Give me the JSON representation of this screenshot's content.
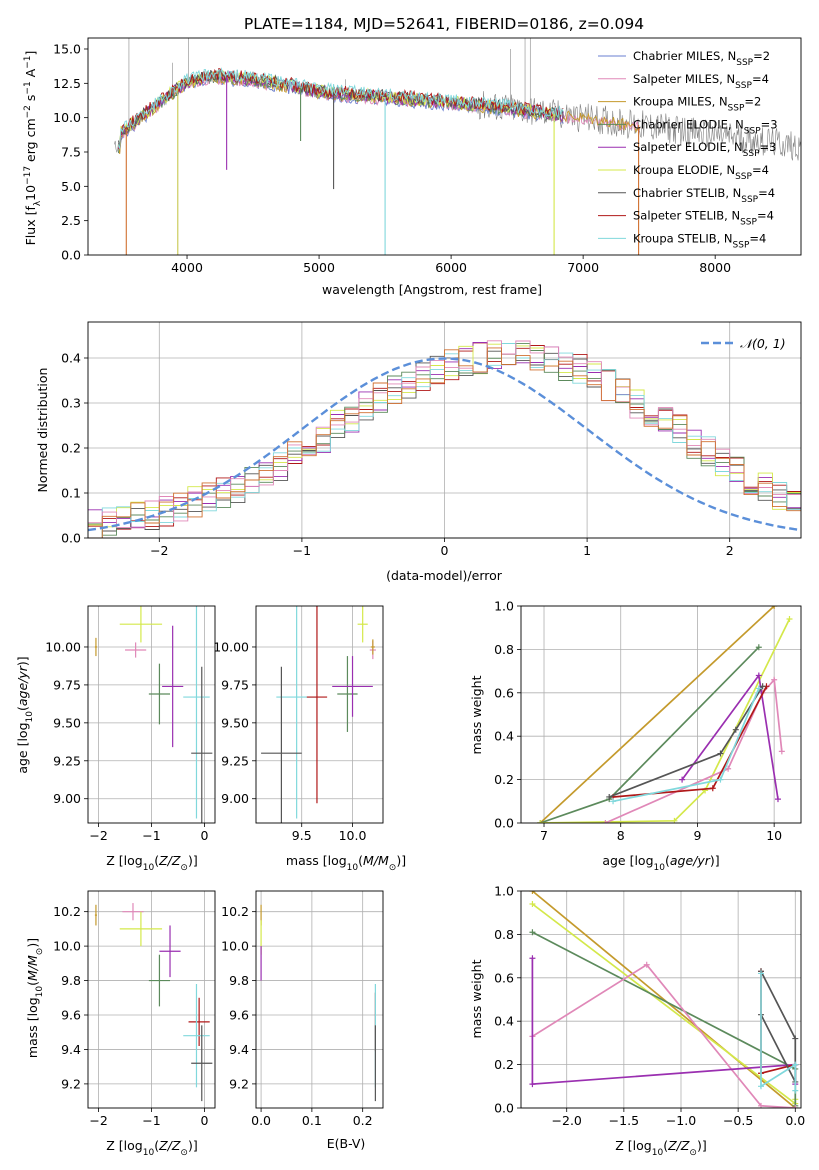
{
  "figure_title": "PLATE=1184, MJD=52641, FIBERID=0186, z=0.094",
  "colors": {
    "Chabrier MILES": "#6a7fd0",
    "Salpeter MILES": "#e088b8",
    "Kroupa MILES": "#c49a2c",
    "Chabrier ELODIE": "#5c8a5c",
    "Salpeter ELODIE": "#9a2fb0",
    "Kroupa ELODIE": "#d4e84a",
    "Chabrier STELIB": "#555555",
    "Salpeter STELIB": "#b01818",
    "Kroupa STELIB": "#80d8dc",
    "normal": "#5b8fd9",
    "mono_edge": "#d07030",
    "spectrum_gray": "#808080"
  },
  "chart_data": [
    {
      "id": "spectrum",
      "type": "line",
      "title": "PLATE=1184, MJD=52641, FIBERID=0186, z=0.094",
      "xlabel": "wavelength [Angstrom, rest frame]",
      "ylabel": "Flux [f_λ 10^-17 erg cm^-2 s^-1 A^-1]",
      "xlim": [
        3250,
        8650
      ],
      "ylim": [
        0,
        15.8
      ],
      "xticks": [
        4000,
        5000,
        6000,
        7000,
        8000
      ],
      "yticks": [
        0.0,
        2.5,
        5.0,
        7.5,
        10.0,
        12.5,
        15.0
      ],
      "grid": false,
      "legend": "upper right",
      "series": [
        {
          "name": "Chabrier MILES",
          "nssp": "2"
        },
        {
          "name": "Salpeter MILES",
          "nssp": "4"
        },
        {
          "name": "Kroupa MILES",
          "nssp": "2"
        },
        {
          "name": "Chabrier ELODIE",
          "nssp": "3"
        },
        {
          "name": "Salpeter ELODIE",
          "nssp": "3"
        },
        {
          "name": "Kroupa ELODIE",
          "nssp": "4"
        },
        {
          "name": "Chabrier STELIB",
          "nssp": "4"
        },
        {
          "name": "Salpeter STELIB",
          "nssp": "4"
        },
        {
          "name": "Kroupa STELIB",
          "nssp": "4"
        }
      ],
      "continuum": {
        "x": [
          3500,
          3700,
          3900,
          4000,
          4200,
          4500,
          4800,
          5000,
          5500,
          6000,
          6500,
          7000,
          7400,
          7800,
          8200,
          8650
        ],
        "y": [
          8.9,
          10.4,
          11.9,
          12.6,
          13.0,
          12.8,
          12.3,
          11.9,
          11.5,
          11.1,
          10.6,
          10.0,
          9.5,
          9.0,
          8.5,
          7.9
        ]
      },
      "absorption_lines": [
        {
          "x": 3540,
          "y": 0
        },
        {
          "x": 3930,
          "y": 0
        },
        {
          "x": 4300,
          "y": 6.2
        },
        {
          "x": 4860,
          "y": 8.3
        },
        {
          "x": 5110,
          "y": 4.8
        },
        {
          "x": 5500,
          "y": 0
        },
        {
          "x": 6780,
          "y": 0
        },
        {
          "x": 7420,
          "y": 0
        }
      ]
    },
    {
      "id": "residuals",
      "type": "histogram",
      "xlabel": "(data-model)/error",
      "ylabel": "Normed distribution",
      "xlim": [
        -2.5,
        2.5
      ],
      "ylim": [
        0,
        0.48
      ],
      "xticks": [
        -2,
        -1,
        0,
        1,
        2
      ],
      "yticks": [
        0.0,
        0.1,
        0.2,
        0.3,
        0.4
      ],
      "grid": true,
      "legend": "upper right",
      "legend_label": "𝒩(0, 1)",
      "bin_width": 0.1,
      "base_distribution": [
        0.03,
        0.035,
        0.04,
        0.045,
        0.05,
        0.06,
        0.07,
        0.08,
        0.09,
        0.1,
        0.11,
        0.125,
        0.14,
        0.16,
        0.18,
        0.2,
        0.22,
        0.25,
        0.27,
        0.29,
        0.31,
        0.33,
        0.345,
        0.36,
        0.375,
        0.385,
        0.395,
        0.4,
        0.405,
        0.41,
        0.41,
        0.405,
        0.395,
        0.385,
        0.375,
        0.36,
        0.34,
        0.325,
        0.3,
        0.28,
        0.26,
        0.24,
        0.21,
        0.19,
        0.17,
        0.15,
        0.13,
        0.11,
        0.095,
        0.08
      ]
    },
    {
      "id": "age_vs_Z",
      "type": "errorbar",
      "xlabel": "Z [log10(Z/Z⊙)]",
      "ylabel": "age  [log10(age/yr)]",
      "xlim": [
        -2.2,
        0.2
      ],
      "ylim": [
        8.84,
        10.27
      ],
      "xticks": [
        -2,
        -1,
        0
      ],
      "yticks": [
        9.0,
        9.25,
        9.5,
        9.75,
        10.0
      ],
      "grid": true,
      "points": [
        {
          "series": "Kroupa MILES",
          "x": -2.05,
          "y": 10.0,
          "xerr": 0.02,
          "yerr": 0.06
        },
        {
          "series": "Kroupa ELODIE",
          "x": -1.2,
          "y": 10.15,
          "xerr": 0.4,
          "yerr": 0.12
        },
        {
          "series": "Salpeter MILES",
          "x": -1.3,
          "y": 9.98,
          "xerr": 0.2,
          "yerr": 0.05
        },
        {
          "series": "Chabrier ELODIE",
          "x": -0.85,
          "y": 9.69,
          "xerr": 0.2,
          "yerr": 0.2
        },
        {
          "series": "Salpeter ELODIE",
          "x": -0.6,
          "y": 9.74,
          "xerr": 0.2,
          "yerr": 0.4
        },
        {
          "series": "Kroupa STELIB",
          "x": -0.15,
          "y": 9.67,
          "xerr": 0.25,
          "yerr": 0.8
        },
        {
          "series": "Chabrier STELIB",
          "x": -0.05,
          "y": 9.3,
          "xerr": 0.2,
          "yerr": 0.57
        }
      ]
    },
    {
      "id": "age_vs_mass",
      "type": "errorbar",
      "xlabel": "mass [log10(M/M⊙)]",
      "ylabel": "",
      "xlim": [
        9.05,
        10.3
      ],
      "ylim": [
        8.84,
        10.27
      ],
      "xticks": [
        9.5,
        10.0
      ],
      "yticks": [
        9.0,
        9.25,
        9.5,
        9.75,
        10.0
      ],
      "grid": true,
      "points": [
        {
          "series": "Kroupa ELODIE",
          "x": 10.1,
          "y": 10.15,
          "xerr": 0.05,
          "yerr": 0.12
        },
        {
          "series": "Salpeter MILES",
          "x": 10.2,
          "y": 9.98,
          "xerr": 0.03,
          "yerr": 0.06
        },
        {
          "series": "Kroupa MILES",
          "x": 10.2,
          "y": 10.0,
          "xerr": 0.02,
          "yerr": 0.05
        },
        {
          "series": "Chabrier ELODIE",
          "x": 9.95,
          "y": 9.69,
          "xerr": 0.1,
          "yerr": 0.25
        },
        {
          "series": "Salpeter ELODIE",
          "x": 10.0,
          "y": 9.74,
          "xerr": 0.2,
          "yerr": 0.2
        },
        {
          "series": "Kroupa STELIB",
          "x": 9.45,
          "y": 9.67,
          "xerr": 0.2,
          "yerr": 0.8
        },
        {
          "series": "Salpeter STELIB",
          "x": 9.65,
          "y": 9.67,
          "xerr": 0.1,
          "yerr": 0.7
        },
        {
          "series": "Chabrier STELIB",
          "x": 9.3,
          "y": 9.3,
          "xerr": 0.2,
          "yerr": 0.57
        }
      ]
    },
    {
      "id": "weight_vs_age",
      "type": "line",
      "xlabel": "age  [log10(age/yr)]",
      "ylabel": "mass weight",
      "xlim": [
        6.7,
        10.35
      ],
      "ylim": [
        0,
        1.0
      ],
      "xticks": [
        7,
        8,
        9,
        10
      ],
      "yticks": [
        0.0,
        0.2,
        0.4,
        0.6,
        0.8,
        1.0
      ],
      "grid": true,
      "series": [
        {
          "series": "Kroupa MILES",
          "x": [
            6.95,
            10.0
          ],
          "y": [
            0.0,
            1.0
          ]
        },
        {
          "series": "Chabrier ELODIE",
          "x": [
            6.95,
            7.85,
            9.8
          ],
          "y": [
            0.0,
            0.11,
            0.81
          ]
        },
        {
          "series": "Kroupa ELODIE",
          "x": [
            6.95,
            8.7,
            9.1,
            10.2
          ],
          "y": [
            0.0,
            0.01,
            0.15,
            0.94
          ]
        },
        {
          "series": "Salpeter MILES",
          "x": [
            7.8,
            9.4,
            9.85,
            10.0,
            10.1
          ],
          "y": [
            0.0,
            0.25,
            0.6,
            0.66,
            0.33
          ]
        },
        {
          "series": "Salpeter ELODIE",
          "x": [
            8.8,
            9.8,
            10.05
          ],
          "y": [
            0.2,
            0.68,
            0.11
          ]
        },
        {
          "series": "Salpeter STELIB",
          "x": [
            7.9,
            9.2,
            9.9
          ],
          "y": [
            0.12,
            0.16,
            0.63
          ]
        },
        {
          "series": "Chabrier STELIB",
          "x": [
            7.85,
            9.3,
            9.5,
            9.85
          ],
          "y": [
            0.12,
            0.32,
            0.43,
            0.63
          ]
        },
        {
          "series": "Kroupa STELIB",
          "x": [
            7.9,
            9.3,
            9.8
          ],
          "y": [
            0.1,
            0.2,
            0.62
          ]
        }
      ]
    },
    {
      "id": "mass_vs_Z",
      "type": "errorbar",
      "xlabel": "Z [log10(Z/Z⊙)]",
      "ylabel": "mass [log10(M/M⊙)]",
      "xlim": [
        -2.2,
        0.2
      ],
      "ylim": [
        9.06,
        10.32
      ],
      "xticks": [
        -2,
        -1,
        0
      ],
      "yticks": [
        9.2,
        9.4,
        9.6,
        9.8,
        10.0,
        10.2
      ],
      "grid": true,
      "points": [
        {
          "series": "Kroupa MILES",
          "x": -2.05,
          "y": 10.18,
          "xerr": 0.02,
          "yerr": 0.06
        },
        {
          "series": "Salpeter MILES",
          "x": -1.35,
          "y": 10.2,
          "xerr": 0.2,
          "yerr": 0.05
        },
        {
          "series": "Kroupa ELODIE",
          "x": -1.2,
          "y": 10.1,
          "xerr": 0.4,
          "yerr": 0.1
        },
        {
          "series": "Salpeter ELODIE",
          "x": -0.65,
          "y": 9.97,
          "xerr": 0.2,
          "yerr": 0.15
        },
        {
          "series": "Chabrier ELODIE",
          "x": -0.85,
          "y": 9.8,
          "xerr": 0.2,
          "yerr": 0.15
        },
        {
          "series": "Salpeter STELIB",
          "x": -0.1,
          "y": 9.56,
          "xerr": 0.2,
          "yerr": 0.14
        },
        {
          "series": "Kroupa STELIB",
          "x": -0.15,
          "y": 9.48,
          "xerr": 0.25,
          "yerr": 0.3
        },
        {
          "series": "Chabrier STELIB",
          "x": -0.05,
          "y": 9.32,
          "xerr": 0.2,
          "yerr": 0.22
        }
      ]
    },
    {
      "id": "mass_vs_ebv",
      "type": "errorbar",
      "xlabel": "E(B-V)",
      "ylabel": "",
      "xlim": [
        -0.01,
        0.24
      ],
      "ylim": [
        9.06,
        10.32
      ],
      "xticks": [
        0.0,
        0.1,
        0.2
      ],
      "yticks": [
        9.2,
        9.4,
        9.6,
        9.8,
        10.0,
        10.2
      ],
      "grid": true,
      "points": [
        {
          "series": "Kroupa MILES",
          "x": 0.0,
          "y": 10.18,
          "xerr": 0.0,
          "yerr": 0.06
        },
        {
          "series": "Kroupa ELODIE",
          "x": 0.0,
          "y": 10.05,
          "xerr": 0.0,
          "yerr": 0.1
        },
        {
          "series": "Salpeter ELODIE",
          "x": 0.0,
          "y": 9.9,
          "xerr": 0.0,
          "yerr": 0.1
        },
        {
          "series": "Salpeter STELIB",
          "x": 0.225,
          "y": 9.56,
          "xerr": 0.0,
          "yerr": 0.17
        },
        {
          "series": "Kroupa STELIB",
          "x": 0.225,
          "y": 9.48,
          "xerr": 0.0,
          "yerr": 0.3
        },
        {
          "series": "Chabrier STELIB",
          "x": 0.225,
          "y": 9.32,
          "xerr": 0.0,
          "yerr": 0.22
        }
      ]
    },
    {
      "id": "weight_vs_Z",
      "type": "line",
      "xlabel": "Z [log10(Z/Z⊙)]",
      "ylabel": "mass weight",
      "xlim": [
        -2.4,
        0.05
      ],
      "ylim": [
        0,
        1.0
      ],
      "xticks": [
        -2.0,
        -1.5,
        -1.0,
        -0.5,
        0.0
      ],
      "yticks": [
        0.0,
        0.2,
        0.4,
        0.6,
        0.8,
        1.0
      ],
      "grid": true,
      "series": [
        {
          "series": "Kroupa MILES",
          "x": [
            -2.3,
            0.0
          ],
          "y": [
            1.0,
            0.0
          ]
        },
        {
          "series": "Kroupa ELODIE",
          "x": [
            -2.3,
            0.0,
            0.0
          ],
          "y": [
            0.94,
            0.02,
            0.04
          ]
        },
        {
          "series": "Chabrier ELODIE",
          "x": [
            -2.3,
            0.0,
            0.0
          ],
          "y": [
            0.81,
            0.18,
            0.01
          ]
        },
        {
          "series": "Salpeter MILES",
          "x": [
            -2.3,
            -1.3,
            -0.3,
            0.0
          ],
          "y": [
            0.33,
            0.66,
            0.01,
            0.0
          ]
        },
        {
          "series": "Salpeter ELODIE",
          "x": [
            -2.3,
            -2.3,
            0.0,
            0.0
          ],
          "y": [
            0.69,
            0.11,
            0.2,
            0.11
          ]
        },
        {
          "series": "Salpeter STELIB",
          "x": [
            -0.3,
            -0.3,
            0.0
          ],
          "y": [
            0.63,
            0.16,
            0.2
          ]
        },
        {
          "series": "Chabrier STELIB",
          "x": [
            -0.3,
            0.0,
            0.0,
            -0.3
          ],
          "y": [
            0.43,
            0.12,
            0.32,
            0.63
          ]
        },
        {
          "series": "Kroupa STELIB",
          "x": [
            -0.3,
            -0.3,
            0.0,
            0.0
          ],
          "y": [
            0.62,
            0.1,
            0.2,
            0.08
          ]
        }
      ]
    }
  ]
}
